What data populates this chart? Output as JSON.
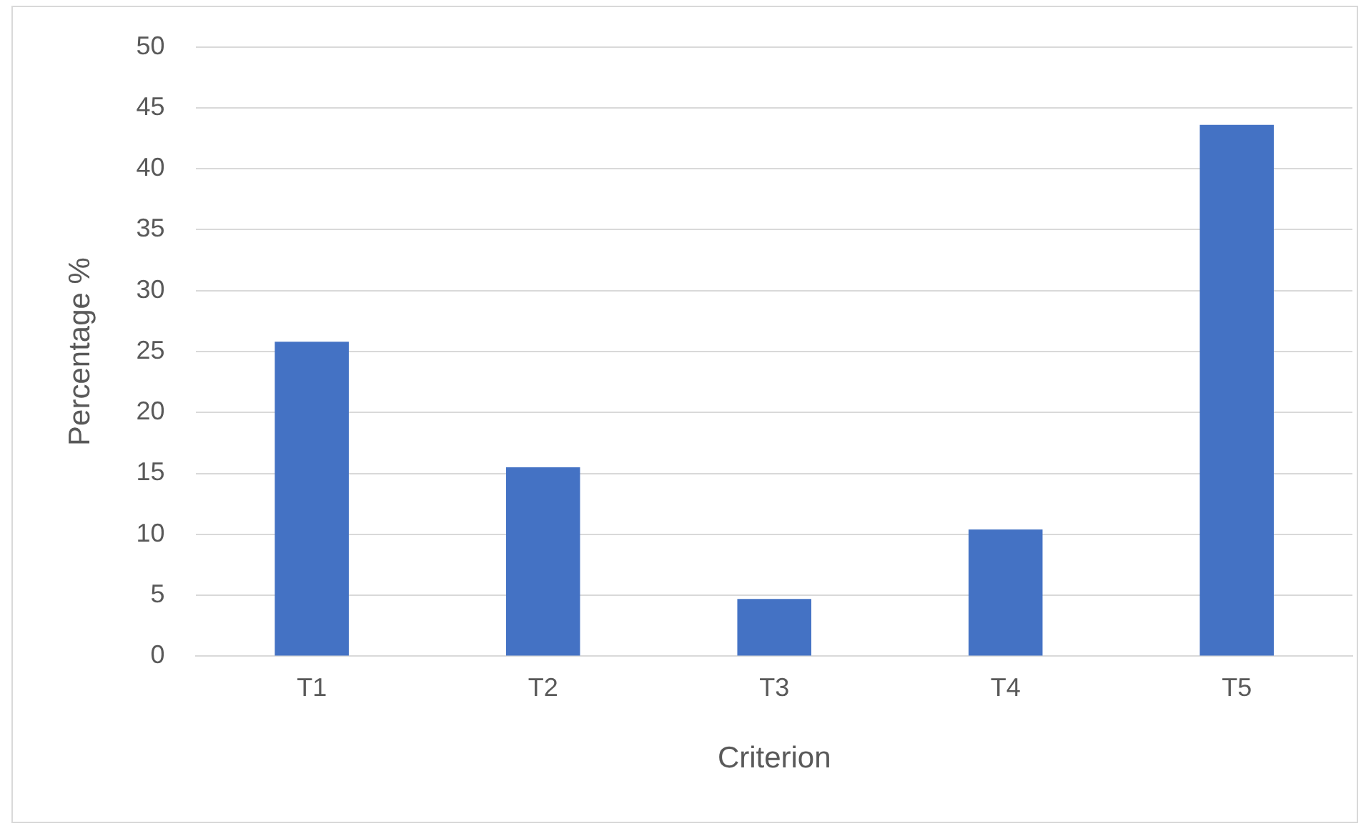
{
  "chart_data": {
    "type": "bar",
    "xlabel": "Criterion",
    "ylabel": "Percentage %",
    "categories": [
      "T1",
      "T2",
      "T3",
      "T4",
      "T5"
    ],
    "values": [
      25.8,
      15.5,
      4.7,
      10.4,
      43.6
    ],
    "color": "#4472c4",
    "ylim": [
      0,
      50
    ],
    "yticks": [
      0,
      5,
      10,
      15,
      20,
      25,
      30,
      35,
      40,
      45,
      50
    ],
    "grid": "y",
    "legend": false
  }
}
